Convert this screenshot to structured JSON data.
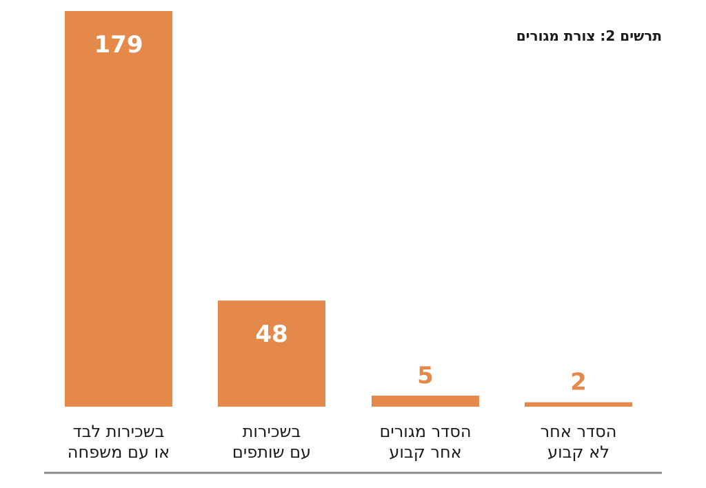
{
  "title": "תרשים 2: צורת מגורים",
  "colors": {
    "bar": "#E5894A",
    "label_on_bar": "#ffffff",
    "label_above_bar": "#E5894A",
    "baseline": "#8c8c8c"
  },
  "chart_data": {
    "type": "bar",
    "title": "תרשים 2: צורת מגורים",
    "xlabel": "",
    "ylabel": "",
    "ylim": [
      0,
      179
    ],
    "grid": false,
    "categories": [
      [
        "בשכירות לבד",
        "או עם משפחה"
      ],
      [
        "בשכירות",
        "עם שותפים"
      ],
      [
        "הסדר מגורים",
        "אחר קבוע"
      ],
      [
        "הסדר אחר",
        "לא קבוע"
      ]
    ],
    "values": [
      179,
      48,
      5,
      2
    ]
  }
}
